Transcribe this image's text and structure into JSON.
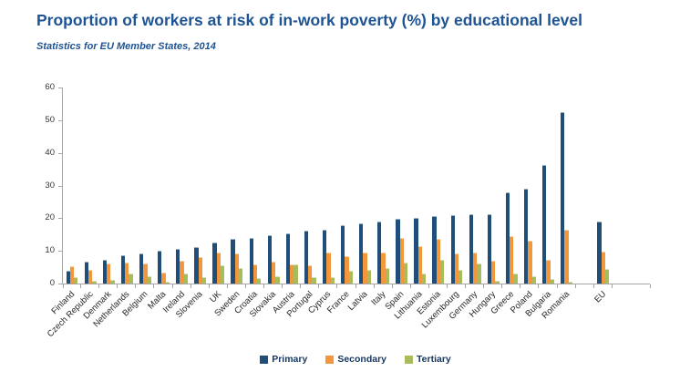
{
  "header": {
    "title": "Proportion of workers at risk of in-work poverty (%) by educational level",
    "subtitle": "Statistics for EU Member States, 2014"
  },
  "chart_data": {
    "type": "bar",
    "title": "Proportion of workers at risk of in-work poverty (%) by educational level",
    "subtitle": "Statistics for EU Member States, 2014",
    "categories": [
      "Finland",
      "Czech Republic",
      "Denmark",
      "Netherlands",
      "Belgium",
      "Malta",
      "Ireland",
      "Slovenia",
      "UK",
      "Sweden",
      "Croatia",
      "Slovakia",
      "Austria",
      "Portugal",
      "Cyprus",
      "France",
      "Latvia",
      "Italy",
      "Spain",
      "Lithuania",
      "Estonia",
      "Luxembourg",
      "Germany",
      "Hungary",
      "Greece",
      "Poland",
      "Bulgaria",
      "Romania",
      "EU"
    ],
    "series": [
      {
        "name": "Primary",
        "color": "#1F4E79",
        "values": [
          3.9,
          6.8,
          7.4,
          8.6,
          9.2,
          10.0,
          10.6,
          11.1,
          12.5,
          13.6,
          14.1,
          14.8,
          15.3,
          16.2,
          16.4,
          17.9,
          18.4,
          18.9,
          19.7,
          20.2,
          20.6,
          21.0,
          21.1,
          21.3,
          27.8,
          28.9,
          36.3,
          52.5,
          19.0
        ]
      },
      {
        "name": "Secondary",
        "color": "#F2973B",
        "values": [
          5.3,
          4.2,
          6.2,
          6.3,
          6.2,
          3.4,
          7.1,
          8.0,
          9.6,
          9.3,
          6.0,
          6.6,
          6.0,
          5.5,
          9.4,
          8.4,
          9.5,
          9.5,
          13.9,
          11.4,
          13.7,
          9.2,
          9.6,
          6.9,
          14.6,
          13.1,
          7.3,
          16.5,
          9.7
        ]
      },
      {
        "name": "Tertiary",
        "color": "#A9BC5B",
        "values": [
          2.1,
          0.9,
          1.2,
          3.1,
          2.2,
          0.7,
          3.1,
          2.0,
          5.5,
          4.8,
          1.7,
          2.3,
          5.9,
          2.1,
          2.0,
          3.8,
          4.2,
          4.8,
          6.4,
          3.0,
          7.4,
          4.1,
          6.2,
          0.9,
          3.2,
          2.2,
          1.5,
          0.7,
          4.5
        ]
      }
    ],
    "ylim": [
      0,
      60
    ],
    "ytick_step": 10,
    "grid": false,
    "legend_position": "bottom",
    "spacer_before_categories": [
      "EU"
    ],
    "axis_color": "#A6A6A6"
  },
  "colors": {
    "title_text": "#1E5394",
    "legend_text": "#17365D",
    "axis_line": "#A6A6A6",
    "tick_label": "#333333"
  }
}
